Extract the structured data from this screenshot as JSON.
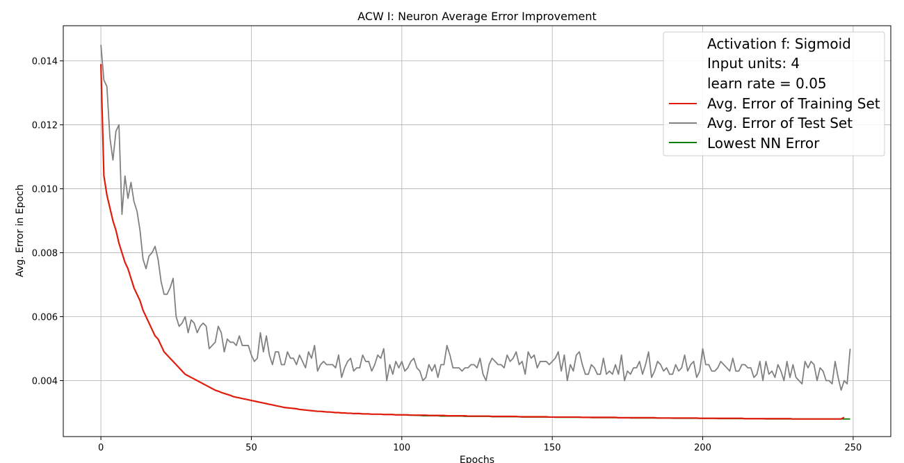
{
  "chart_data": {
    "type": "line",
    "title": "ACW I: Neuron Average Error Improvement",
    "xlabel": "Epochs",
    "ylabel": "Avg. Error in Epoch",
    "xlim": [
      -12.5,
      262.5
    ],
    "ylim": [
      0.00225,
      0.0151
    ],
    "xticks": [
      0,
      50,
      100,
      150,
      200,
      250
    ],
    "yticks": [
      0.004,
      0.006,
      0.008,
      0.01,
      0.012,
      0.014
    ],
    "ytick_labels": [
      "0.004",
      "0.006",
      "0.008",
      "0.010",
      "0.012",
      "0.014"
    ],
    "grid": true,
    "legend_position": "top-right",
    "legend_info": [
      "Activation f: Sigmoid",
      "Input units: 4",
      "learn rate = 0.05"
    ],
    "series": [
      {
        "name": "Avg. Error of Training Set",
        "color": "#e01b0c",
        "x_start": 0,
        "values": [
          0.0139,
          0.0104,
          0.0098,
          0.0094,
          0.009,
          0.0087,
          0.0083,
          0.008,
          0.0077,
          0.0075,
          0.0072,
          0.0069,
          0.0067,
          0.0065,
          0.0062,
          0.006,
          0.0058,
          0.0056,
          0.0054,
          0.0053,
          0.0051,
          0.0049,
          0.0048,
          0.0047,
          0.0046,
          0.0045,
          0.0044,
          0.0043,
          0.0042,
          0.00415,
          0.0041,
          0.00405,
          0.004,
          0.00395,
          0.0039,
          0.00385,
          0.0038,
          0.00375,
          0.0037,
          0.00367,
          0.00363,
          0.0036,
          0.00357,
          0.00354,
          0.0035,
          0.00348,
          0.00346,
          0.00344,
          0.00342,
          0.0034,
          0.00338,
          0.00336,
          0.00334,
          0.00332,
          0.0033,
          0.00328,
          0.00326,
          0.00324,
          0.00322,
          0.0032,
          0.00318,
          0.00316,
          0.00315,
          0.00314,
          0.00313,
          0.00312,
          0.0031,
          0.00309,
          0.00308,
          0.00307,
          0.00306,
          0.00305,
          0.00304,
          0.00304,
          0.00303,
          0.00302,
          0.00302,
          0.00301,
          0.003,
          0.003,
          0.00299,
          0.00299,
          0.00298,
          0.00298,
          0.00297,
          0.00297,
          0.00297,
          0.00296,
          0.00296,
          0.00296,
          0.00295,
          0.00295,
          0.00295,
          0.00295,
          0.00294,
          0.00294,
          0.00294,
          0.00294,
          0.00293,
          0.00293,
          0.00293,
          0.00293,
          0.00293,
          0.00292,
          0.00292,
          0.00292,
          0.00292,
          0.00292,
          0.00292,
          0.00291,
          0.00291,
          0.00291,
          0.00291,
          0.00291,
          0.00291,
          0.0029,
          0.0029,
          0.0029,
          0.0029,
          0.0029,
          0.0029,
          0.0029,
          0.00289,
          0.00289,
          0.00289,
          0.00289,
          0.00289,
          0.00289,
          0.00289,
          0.00289,
          0.00288,
          0.00288,
          0.00288,
          0.00288,
          0.00288,
          0.00288,
          0.00288,
          0.00288,
          0.00288,
          0.00287,
          0.00287,
          0.00287,
          0.00287,
          0.00287,
          0.00287,
          0.00287,
          0.00287,
          0.00287,
          0.00287,
          0.00286,
          0.00286,
          0.00286,
          0.00286,
          0.00286,
          0.00286,
          0.00286,
          0.00286,
          0.00286,
          0.00286,
          0.00286,
          0.00285,
          0.00285,
          0.00285,
          0.00285,
          0.00285,
          0.00285,
          0.00285,
          0.00285,
          0.00285,
          0.00285,
          0.00285,
          0.00285,
          0.00284,
          0.00284,
          0.00284,
          0.00284,
          0.00284,
          0.00284,
          0.00284,
          0.00284,
          0.00284,
          0.00284,
          0.00284,
          0.00284,
          0.00284,
          0.00283,
          0.00283,
          0.00283,
          0.00283,
          0.00283,
          0.00283,
          0.00283,
          0.00283,
          0.00283,
          0.00283,
          0.00283,
          0.00283,
          0.00283,
          0.00283,
          0.00282,
          0.00282,
          0.00282,
          0.00282,
          0.00282,
          0.00282,
          0.00282,
          0.00282,
          0.00282,
          0.00282,
          0.00282,
          0.00282,
          0.00282,
          0.00282,
          0.00282,
          0.00281,
          0.00281,
          0.00281,
          0.00281,
          0.00281,
          0.00281,
          0.00281,
          0.00281,
          0.00281,
          0.00281,
          0.00281,
          0.00281,
          0.00281,
          0.00281,
          0.00281,
          0.00281,
          0.0028,
          0.0028,
          0.0028,
          0.0028,
          0.0028,
          0.0028,
          0.0028,
          0.0028,
          0.0028,
          0.0028,
          0.0028,
          0.0028,
          0.0028,
          0.0028,
          0.0028,
          0.0028,
          0.0028,
          0.00285
        ]
      },
      {
        "name": "Avg. Error of Test Set",
        "color": "#808080",
        "x_start": 0,
        "values": [
          0.0145,
          0.0134,
          0.0132,
          0.0116,
          0.0109,
          0.0118,
          0.012,
          0.0092,
          0.0104,
          0.0097,
          0.0102,
          0.0096,
          0.0093,
          0.0087,
          0.0078,
          0.0075,
          0.0079,
          0.008,
          0.0082,
          0.0078,
          0.0071,
          0.0067,
          0.0067,
          0.0069,
          0.0072,
          0.006,
          0.0057,
          0.0058,
          0.006,
          0.0055,
          0.0059,
          0.0058,
          0.0055,
          0.0057,
          0.0058,
          0.0057,
          0.005,
          0.0051,
          0.0052,
          0.0057,
          0.0055,
          0.0049,
          0.0053,
          0.0052,
          0.0052,
          0.0051,
          0.0054,
          0.0051,
          0.0051,
          0.0051,
          0.0048,
          0.0046,
          0.0047,
          0.0055,
          0.0049,
          0.0054,
          0.0048,
          0.0045,
          0.0049,
          0.0049,
          0.0045,
          0.0045,
          0.0049,
          0.0047,
          0.0047,
          0.0045,
          0.0048,
          0.0046,
          0.0044,
          0.0049,
          0.0047,
          0.0051,
          0.0043,
          0.0045,
          0.0046,
          0.0045,
          0.0045,
          0.0045,
          0.0044,
          0.0048,
          0.0041,
          0.0044,
          0.0046,
          0.0047,
          0.0043,
          0.0044,
          0.0044,
          0.0048,
          0.0046,
          0.0046,
          0.0043,
          0.0045,
          0.0048,
          0.0047,
          0.005,
          0.004,
          0.0045,
          0.0042,
          0.0046,
          0.0044,
          0.0046,
          0.0043,
          0.0044,
          0.0046,
          0.0047,
          0.0044,
          0.0043,
          0.004,
          0.0041,
          0.0045,
          0.0043,
          0.0045,
          0.0041,
          0.0045,
          0.0045,
          0.0051,
          0.0048,
          0.0044,
          0.0044,
          0.0044,
          0.0043,
          0.0044,
          0.0044,
          0.0045,
          0.0045,
          0.0044,
          0.0047,
          0.0042,
          0.004,
          0.0045,
          0.0047,
          0.0046,
          0.0045,
          0.0045,
          0.0044,
          0.0048,
          0.0046,
          0.0047,
          0.0049,
          0.0045,
          0.0046,
          0.0042,
          0.0049,
          0.0047,
          0.0048,
          0.0044,
          0.0046,
          0.0046,
          0.0046,
          0.0045,
          0.0046,
          0.0047,
          0.0049,
          0.0043,
          0.0048,
          0.004,
          0.0045,
          0.0043,
          0.0048,
          0.0049,
          0.0045,
          0.0042,
          0.0042,
          0.0045,
          0.0044,
          0.0042,
          0.0042,
          0.0047,
          0.0042,
          0.0043,
          0.0042,
          0.0045,
          0.0042,
          0.0048,
          0.004,
          0.0043,
          0.0042,
          0.0044,
          0.0044,
          0.0046,
          0.0042,
          0.0045,
          0.0049,
          0.0041,
          0.0043,
          0.0046,
          0.0045,
          0.0043,
          0.0044,
          0.0042,
          0.0042,
          0.0045,
          0.0043,
          0.0044,
          0.0048,
          0.0043,
          0.0045,
          0.0046,
          0.0041,
          0.0043,
          0.005,
          0.0045,
          0.0045,
          0.0043,
          0.0043,
          0.0044,
          0.0046,
          0.0045,
          0.0044,
          0.0043,
          0.0047,
          0.0043,
          0.0043,
          0.0045,
          0.0045,
          0.0044,
          0.0044,
          0.0041,
          0.0042,
          0.0046,
          0.004,
          0.0046,
          0.0042,
          0.0043,
          0.0041,
          0.0045,
          0.0043,
          0.004,
          0.0046,
          0.0041,
          0.0045,
          0.0041,
          0.004,
          0.0039,
          0.0046,
          0.0044,
          0.0046,
          0.0045,
          0.004,
          0.0044,
          0.0043,
          0.004,
          0.004,
          0.0039,
          0.0046,
          0.0041,
          0.0037,
          0.004,
          0.0039,
          0.005
        ]
      },
      {
        "name": "Lowest NN Error",
        "color": "#0a800a",
        "x_start": 100,
        "values": [
          0.00293,
          0.00293,
          0.00292,
          0.00292,
          0.00292,
          0.00291,
          0.00291,
          0.0029,
          0.0029,
          0.0029,
          0.0029,
          0.0029,
          0.0029,
          0.00289,
          0.00289,
          0.00289,
          0.00289,
          0.00289,
          0.00289,
          0.00289,
          0.00289,
          0.00288,
          0.00288,
          0.00288,
          0.00288,
          0.00288,
          0.00288,
          0.00288,
          0.00288,
          0.00288,
          0.00287,
          0.00287,
          0.00287,
          0.00287,
          0.00287,
          0.00287,
          0.00287,
          0.00287,
          0.00287,
          0.00287,
          0.00286,
          0.00286,
          0.00286,
          0.00286,
          0.00286,
          0.00286,
          0.00286,
          0.00286,
          0.00286,
          0.00286,
          0.00286,
          0.00285,
          0.00285,
          0.00285,
          0.00285,
          0.00285,
          0.00285,
          0.00285,
          0.00285,
          0.00285,
          0.00285,
          0.00285,
          0.00285,
          0.00284,
          0.00284,
          0.00284,
          0.00284,
          0.00284,
          0.00284,
          0.00284,
          0.00284,
          0.00284,
          0.00284,
          0.00284,
          0.00284,
          0.00284,
          0.00283,
          0.00283,
          0.00283,
          0.00283,
          0.00283,
          0.00283,
          0.00283,
          0.00283,
          0.00283,
          0.00283,
          0.00283,
          0.00283,
          0.00283,
          0.00283,
          0.00282,
          0.00282,
          0.00282,
          0.00282,
          0.00282,
          0.00282,
          0.00282,
          0.00282,
          0.00282,
          0.00282,
          0.00282,
          0.00282,
          0.00282,
          0.00282,
          0.00282,
          0.00281,
          0.00281,
          0.00281,
          0.00281,
          0.00281,
          0.00281,
          0.00281,
          0.00281,
          0.00281,
          0.00281,
          0.00281,
          0.00281,
          0.00281,
          0.00281,
          0.00281,
          0.00281,
          0.0028,
          0.0028,
          0.0028,
          0.0028,
          0.0028,
          0.0028,
          0.0028,
          0.0028,
          0.0028,
          0.0028,
          0.0028,
          0.0028,
          0.0028,
          0.0028,
          0.0028,
          0.0028,
          0.0028,
          0.0028,
          0.0028,
          0.0028,
          0.0028,
          0.0028,
          0.0028,
          0.0028,
          0.0028,
          0.0028,
          0.0028,
          0.0028,
          0.0028
        ]
      }
    ]
  }
}
